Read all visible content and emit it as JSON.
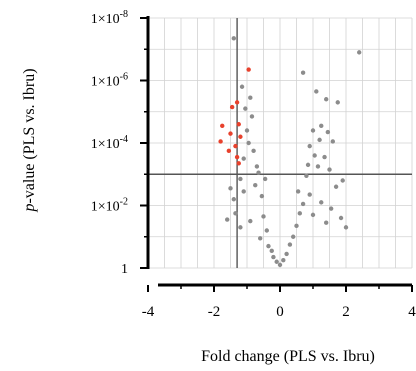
{
  "chart_data": {
    "type": "scatter",
    "title": "",
    "xlabel": "Fold change  (PLS vs. Ibru)",
    "ylabel_prefix": "p",
    "ylabel_rest": "-value (PLS vs. Ibru)",
    "xlim": [
      -4,
      4
    ],
    "ylim_log10": [
      0,
      8
    ],
    "x_ticks": [
      "-4",
      "-2",
      "0",
      "2",
      "4"
    ],
    "y_ticks": [
      {
        "base": "1",
        "exp": ""
      },
      {
        "base": "1×10",
        "exp": "-2"
      },
      {
        "base": "1×10",
        "exp": "-4"
      },
      {
        "base": "1×10",
        "exp": "-6"
      },
      {
        "base": "1×10",
        "exp": "-8"
      }
    ],
    "grid": true,
    "reference_lines": {
      "x": -1.3,
      "y_neglog10": 3
    },
    "colors": {
      "gray": "#8c8c8c",
      "red": "#e8412c",
      "grid": "#d2d2d2",
      "ref": "#555555"
    },
    "series": [
      {
        "color_key": "red",
        "points": [
          [
            -0.95,
            6.35
          ],
          [
            -1.45,
            5.15
          ],
          [
            -1.3,
            5.3
          ],
          [
            -1.75,
            4.55
          ],
          [
            -1.25,
            4.6
          ],
          [
            -1.5,
            4.3
          ],
          [
            -1.2,
            4.2
          ],
          [
            -1.8,
            4.05
          ],
          [
            -1.35,
            3.9
          ],
          [
            -1.55,
            3.75
          ],
          [
            -1.3,
            3.55
          ],
          [
            -1.25,
            3.35
          ]
        ]
      },
      {
        "color_key": "gray",
        "points": [
          [
            -1.4,
            7.35
          ],
          [
            2.4,
            6.9
          ],
          [
            0.7,
            6.25
          ],
          [
            1.4,
            5.4
          ],
          [
            1.75,
            5.3
          ],
          [
            1.1,
            5.65
          ],
          [
            1.25,
            4.55
          ],
          [
            1.45,
            4.35
          ],
          [
            1.0,
            4.4
          ],
          [
            1.6,
            4.05
          ],
          [
            1.2,
            4.1
          ],
          [
            0.9,
            3.9
          ],
          [
            1.05,
            3.6
          ],
          [
            1.35,
            3.55
          ],
          [
            0.85,
            3.3
          ],
          [
            1.5,
            3.15
          ],
          [
            1.15,
            3.25
          ],
          [
            1.9,
            2.8
          ],
          [
            0.8,
            2.95
          ],
          [
            1.7,
            2.6
          ],
          [
            -1.05,
            5.1
          ],
          [
            -0.9,
            5.45
          ],
          [
            -1.15,
            5.8
          ],
          [
            -0.85,
            4.85
          ],
          [
            -1.0,
            4.4
          ],
          [
            -0.95,
            4.0
          ],
          [
            -0.8,
            3.75
          ],
          [
            -1.1,
            3.5
          ],
          [
            -1.5,
            2.55
          ],
          [
            -1.2,
            2.85
          ],
          [
            -1.4,
            2.2
          ],
          [
            -0.7,
            3.25
          ],
          [
            -1.6,
            1.55
          ],
          [
            -1.35,
            1.75
          ],
          [
            -1.1,
            2.45
          ],
          [
            -0.75,
            2.65
          ],
          [
            -0.55,
            2.3
          ],
          [
            -0.5,
            1.65
          ],
          [
            -0.4,
            1.2
          ],
          [
            -0.6,
            0.95
          ],
          [
            -0.35,
            0.7
          ],
          [
            -0.25,
            0.55
          ],
          [
            -0.2,
            0.35
          ],
          [
            -0.1,
            0.2
          ],
          [
            0.0,
            0.1
          ],
          [
            0.1,
            0.25
          ],
          [
            0.2,
            0.45
          ],
          [
            0.3,
            0.75
          ],
          [
            0.4,
            1.0
          ],
          [
            0.5,
            1.35
          ],
          [
            0.6,
            1.75
          ],
          [
            0.7,
            2.05
          ],
          [
            0.55,
            2.45
          ],
          [
            0.9,
            2.35
          ],
          [
            1.25,
            2.1
          ],
          [
            1.55,
            1.9
          ],
          [
            1.85,
            1.6
          ],
          [
            2.0,
            1.3
          ],
          [
            1.4,
            1.45
          ],
          [
            1.0,
            1.7
          ],
          [
            -0.9,
            1.5
          ],
          [
            -1.2,
            1.3
          ],
          [
            -0.45,
            2.85
          ],
          [
            -0.65,
            3.05
          ]
        ]
      }
    ]
  }
}
